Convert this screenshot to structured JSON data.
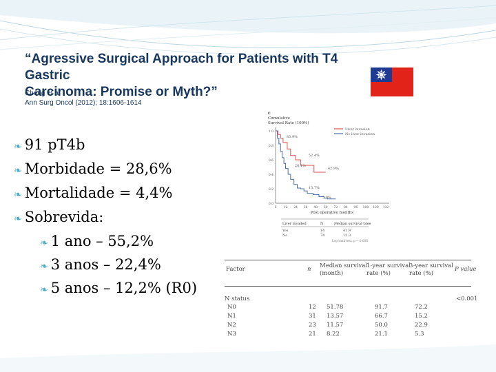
{
  "slide": {
    "title_line1": "“Agressive Surgical Approach for Patients with T4 Gastric",
    "title_line2": "Carcinoma: Promise or Myth?”",
    "citation_line1": "Cheng et al",
    "citation_line2": "Ann Surg Oncol (2012); 18:1606-1614"
  },
  "bullets": {
    "level1": [
      "91 pT4b",
      "Morbidade = 28,6%",
      "Mortalidade = 4,4%",
      "Sobrevida:"
    ],
    "level2": [
      "1 ano – 55,2%",
      "3 anos – 22,4%",
      "5 anos – 12,2% (R0)"
    ]
  },
  "km_plot": {
    "panel_label": "c",
    "y_title_line1": "Cumulative",
    "y_title_line2": "Survival Rate (100%)",
    "legend": [
      "Liver invasion",
      "No liver invasion"
    ],
    "y_ticks": [
      "1.0",
      "0.8",
      "0.6",
      "0.4",
      "0.2",
      "0.0"
    ],
    "x_ticks": [
      "0",
      "12",
      "24",
      "36",
      "48",
      "60",
      "72",
      "84",
      "96",
      "108",
      "120",
      "132"
    ],
    "x_title": "Post operative months",
    "annotations": [
      "83.9%",
      "52.4%",
      "42.9%",
      "20.1%",
      "13.7%",
      "5.9%"
    ],
    "table_header": [
      "Liver invaded",
      "N",
      "Median survival time"
    ],
    "table_rows": [
      [
        "Yes",
        "14",
        "41.9"
      ],
      [
        "No",
        "74",
        "12.3"
      ]
    ],
    "footer": "Log rank test, p = 0.006",
    "colors": {
      "liver": "#d9534f",
      "no_liver": "#4a6fa5"
    },
    "liver_curve": [
      [
        0,
        1.0
      ],
      [
        3,
        0.95
      ],
      [
        6,
        0.9
      ],
      [
        9,
        0.839
      ],
      [
        14,
        0.75
      ],
      [
        18,
        0.66
      ],
      [
        24,
        0.6
      ],
      [
        30,
        0.524
      ],
      [
        40,
        0.524
      ],
      [
        46,
        0.429
      ],
      [
        60,
        0.429
      ]
    ],
    "no_liver_curve": [
      [
        0,
        1.0
      ],
      [
        2,
        0.9
      ],
      [
        4,
        0.82
      ],
      [
        6,
        0.72
      ],
      [
        8,
        0.63
      ],
      [
        10,
        0.55
      ],
      [
        12,
        0.48
      ],
      [
        15,
        0.4
      ],
      [
        18,
        0.33
      ],
      [
        22,
        0.26
      ],
      [
        26,
        0.21
      ],
      [
        30,
        0.2
      ],
      [
        34,
        0.17
      ],
      [
        38,
        0.137
      ],
      [
        45,
        0.12
      ],
      [
        52,
        0.09
      ],
      [
        58,
        0.07
      ],
      [
        62,
        0.059
      ],
      [
        72,
        0.059
      ]
    ]
  },
  "stats_table": {
    "headers": [
      [
        "Factor"
      ],
      [
        "n"
      ],
      [
        "Median survival",
        "(month)"
      ],
      [
        "1-year survival",
        "rate (%)"
      ],
      [
        "3-year survival",
        "rate (%)"
      ],
      [
        "P value"
      ]
    ],
    "group_label": "N status",
    "group_p": "<0.001",
    "rows": [
      [
        "N0",
        "12",
        "51.78",
        "91.7",
        "72.2"
      ],
      [
        "N1",
        "31",
        "13.57",
        "66.7",
        "15.2"
      ],
      [
        "N2",
        "23",
        "11.57",
        "50.0",
        "22.9"
      ],
      [
        "N3",
        "21",
        "8.22",
        "21.1",
        "5.3"
      ]
    ]
  }
}
